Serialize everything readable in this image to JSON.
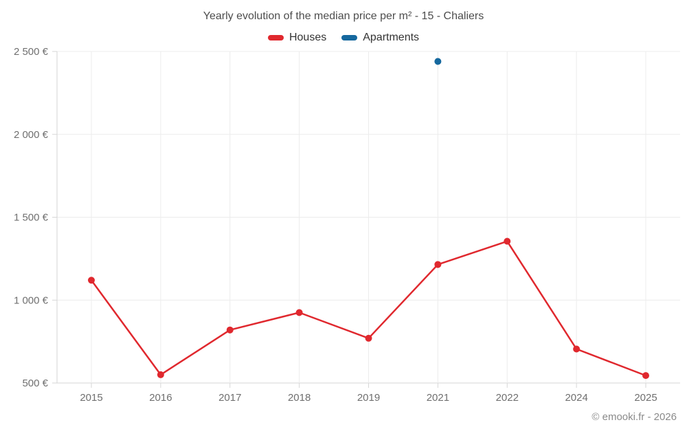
{
  "chart": {
    "title": "Yearly evolution of the median price per m² - 15 - Chaliers",
    "footer": "© emooki.fr - 2026"
  },
  "legend": {
    "items": [
      {
        "id": "houses",
        "label": "Houses",
        "color": "#e0282e"
      },
      {
        "id": "apartments",
        "label": "Apartments",
        "color": "#15689e"
      }
    ]
  },
  "chart_data": {
    "type": "line",
    "title": "Yearly evolution of the median price per m² - 15 - Chaliers",
    "categories": [
      "2015",
      "2016",
      "2017",
      "2018",
      "2019",
      "2021",
      "2022",
      "2024",
      "2025"
    ],
    "series": [
      {
        "name": "Houses",
        "color": "#e0282e",
        "values": [
          1120,
          550,
          820,
          925,
          770,
          1215,
          1355,
          705,
          545
        ]
      },
      {
        "name": "Apartments",
        "color": "#15689e",
        "values": [
          null,
          null,
          null,
          null,
          null,
          2440,
          null,
          null,
          null
        ]
      }
    ],
    "xlabel": "",
    "ylabel": "",
    "ylim": [
      500,
      2500
    ],
    "yticks": [
      500,
      1000,
      1500,
      2000,
      2500
    ],
    "ytick_labels": [
      "500 €",
      "1 000 €",
      "1 500 €",
      "2 000 €",
      "2 500 €"
    ],
    "grid": true,
    "legend_position": "top",
    "colors": {
      "gridline": "#ececec",
      "axis_line": "#d6d6d6",
      "axis_label": "#6f6f6f"
    }
  }
}
